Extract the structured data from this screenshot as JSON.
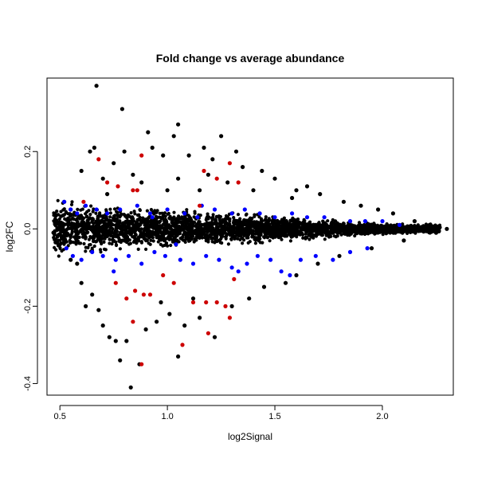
{
  "chart_data": {
    "type": "scatter",
    "title": "Fold change vs average abundance",
    "xlabel": "log2Signal",
    "ylabel": "log2FC",
    "xlim": [
      0.44,
      2.33
    ],
    "ylim": [
      -0.43,
      0.39
    ],
    "x_ticks": [
      0.5,
      1.0,
      1.5,
      2.0
    ],
    "x_tick_labels": [
      "0.5",
      "1.0",
      "1.5",
      "2.0"
    ],
    "y_ticks": [
      -0.4,
      -0.2,
      0.0,
      0.2
    ],
    "y_tick_labels": [
      "-0.4",
      "-0.2",
      "0.0",
      "0.2"
    ],
    "grid": false,
    "legend": "none",
    "colors": {
      "base": "#000000",
      "blue": "#0000ff",
      "red": "#cd0000"
    },
    "series": [
      {
        "color": "base",
        "points": [
          [
            0.67,
            0.37
          ],
          [
            0.79,
            0.31
          ],
          [
            1.05,
            0.27
          ],
          [
            0.91,
            0.25
          ],
          [
            1.03,
            0.24
          ],
          [
            1.25,
            0.24
          ],
          [
            0.64,
            0.2
          ],
          [
            0.66,
            0.21
          ],
          [
            0.8,
            0.2
          ],
          [
            0.93,
            0.21
          ],
          [
            1.17,
            0.21
          ],
          [
            1.32,
            0.2
          ],
          [
            0.98,
            0.19
          ],
          [
            1.1,
            0.19
          ],
          [
            1.21,
            0.18
          ],
          [
            0.75,
            0.17
          ],
          [
            1.35,
            0.16
          ],
          [
            1.44,
            0.15
          ],
          [
            0.6,
            0.15
          ],
          [
            1.19,
            0.14
          ],
          [
            1.5,
            0.13
          ],
          [
            0.7,
            0.13
          ],
          [
            1.05,
            0.13
          ],
          [
            1.6,
            0.1
          ],
          [
            1.65,
            0.11
          ],
          [
            1.71,
            0.09
          ],
          [
            1.58,
            0.08
          ],
          [
            1.82,
            0.07
          ],
          [
            1.9,
            0.06
          ],
          [
            1.98,
            0.05
          ],
          [
            2.05,
            0.04
          ],
          [
            2.15,
            0.02
          ],
          [
            2.22,
            0.01
          ],
          [
            2.3,
            0.0
          ],
          [
            2.25,
            -0.01
          ],
          [
            2.1,
            -0.03
          ],
          [
            1.95,
            -0.05
          ],
          [
            1.8,
            -0.07
          ],
          [
            1.7,
            -0.09
          ],
          [
            1.6,
            -0.12
          ],
          [
            1.55,
            -0.14
          ],
          [
            1.45,
            -0.15
          ],
          [
            0.58,
            -0.09
          ],
          [
            0.55,
            -0.08
          ],
          [
            0.6,
            -0.14
          ],
          [
            0.62,
            -0.2
          ],
          [
            0.65,
            -0.17
          ],
          [
            0.7,
            -0.25
          ],
          [
            0.73,
            -0.28
          ],
          [
            0.76,
            -0.29
          ],
          [
            0.81,
            -0.29
          ],
          [
            0.9,
            -0.26
          ],
          [
            0.95,
            -0.24
          ],
          [
            1.01,
            -0.22
          ],
          [
            1.08,
            -0.25
          ],
          [
            1.15,
            -0.23
          ],
          [
            1.22,
            -0.28
          ],
          [
            1.05,
            -0.33
          ],
          [
            0.87,
            -0.35
          ],
          [
            0.78,
            -0.34
          ],
          [
            0.83,
            -0.41
          ],
          [
            1.3,
            -0.2
          ],
          [
            1.38,
            -0.18
          ],
          [
            0.68,
            -0.21
          ],
          [
            1.12,
            -0.18
          ],
          [
            0.97,
            -0.19
          ],
          [
            0.55,
            0.05
          ],
          [
            0.52,
            0.07
          ],
          [
            0.5,
            -0.04
          ],
          [
            0.48,
            0.02
          ],
          [
            0.47,
            -0.01
          ],
          [
            1.4,
            0.1
          ],
          [
            1.28,
            0.12
          ],
          [
            0.88,
            0.12
          ],
          [
            0.84,
            0.14
          ],
          [
            1.0,
            0.1
          ],
          [
            0.72,
            0.09
          ],
          [
            1.15,
            0.1
          ]
        ]
      },
      {
        "color": "blue",
        "points": [
          [
            0.52,
            0.07
          ],
          [
            0.55,
            0.05
          ],
          [
            0.58,
            0.04
          ],
          [
            0.62,
            0.06
          ],
          [
            0.67,
            0.05
          ],
          [
            0.72,
            0.04
          ],
          [
            0.78,
            0.05
          ],
          [
            0.86,
            0.06
          ],
          [
            0.92,
            0.04
          ],
          [
            1.0,
            0.05
          ],
          [
            1.08,
            0.04
          ],
          [
            1.16,
            0.06
          ],
          [
            1.22,
            0.05
          ],
          [
            1.3,
            0.04
          ],
          [
            1.36,
            0.05
          ],
          [
            1.43,
            0.04
          ],
          [
            1.5,
            0.03
          ],
          [
            1.58,
            0.04
          ],
          [
            1.65,
            0.03
          ],
          [
            1.73,
            0.03
          ],
          [
            1.85,
            0.02
          ],
          [
            1.92,
            0.02
          ],
          [
            2.0,
            0.02
          ],
          [
            2.08,
            0.01
          ],
          [
            0.53,
            -0.05
          ],
          [
            0.56,
            -0.07
          ],
          [
            0.6,
            -0.08
          ],
          [
            0.65,
            -0.06
          ],
          [
            0.7,
            -0.07
          ],
          [
            0.76,
            -0.08
          ],
          [
            0.82,
            -0.07
          ],
          [
            0.88,
            -0.09
          ],
          [
            0.94,
            -0.06
          ],
          [
            0.99,
            -0.07
          ],
          [
            1.06,
            -0.08
          ],
          [
            1.12,
            -0.09
          ],
          [
            1.18,
            -0.07
          ],
          [
            1.24,
            -0.08
          ],
          [
            1.3,
            -0.1
          ],
          [
            1.37,
            -0.09
          ],
          [
            1.42,
            -0.07
          ],
          [
            1.48,
            -0.08
          ],
          [
            1.53,
            -0.11
          ],
          [
            1.57,
            -0.12
          ],
          [
            1.62,
            -0.08
          ],
          [
            1.69,
            -0.07
          ],
          [
            1.77,
            -0.08
          ],
          [
            1.85,
            -0.06
          ],
          [
            1.93,
            -0.05
          ],
          [
            0.93,
            0.03
          ],
          [
            1.04,
            -0.04
          ],
          [
            0.75,
            -0.11
          ],
          [
            1.33,
            -0.11
          ],
          [
            1.14,
            0.03
          ]
        ]
      },
      {
        "color": "red",
        "points": [
          [
            0.68,
            0.18
          ],
          [
            0.72,
            0.12
          ],
          [
            0.77,
            0.11
          ],
          [
            0.84,
            0.1
          ],
          [
            0.88,
            0.19
          ],
          [
            0.86,
            0.1
          ],
          [
            1.17,
            0.15
          ],
          [
            1.23,
            0.13
          ],
          [
            1.29,
            0.17
          ],
          [
            1.33,
            0.12
          ],
          [
            1.15,
            0.06
          ],
          [
            0.61,
            0.07
          ],
          [
            0.76,
            -0.14
          ],
          [
            0.81,
            -0.18
          ],
          [
            0.85,
            -0.16
          ],
          [
            0.89,
            -0.17
          ],
          [
            0.92,
            -0.17
          ],
          [
            1.03,
            -0.14
          ],
          [
            1.12,
            -0.19
          ],
          [
            1.18,
            -0.19
          ],
          [
            1.23,
            -0.19
          ],
          [
            1.27,
            -0.2
          ],
          [
            1.29,
            -0.23
          ],
          [
            1.31,
            -0.13
          ],
          [
            1.19,
            -0.27
          ],
          [
            1.07,
            -0.3
          ],
          [
            0.88,
            -0.35
          ],
          [
            0.84,
            -0.24
          ],
          [
            0.98,
            -0.12
          ]
        ]
      }
    ]
  }
}
